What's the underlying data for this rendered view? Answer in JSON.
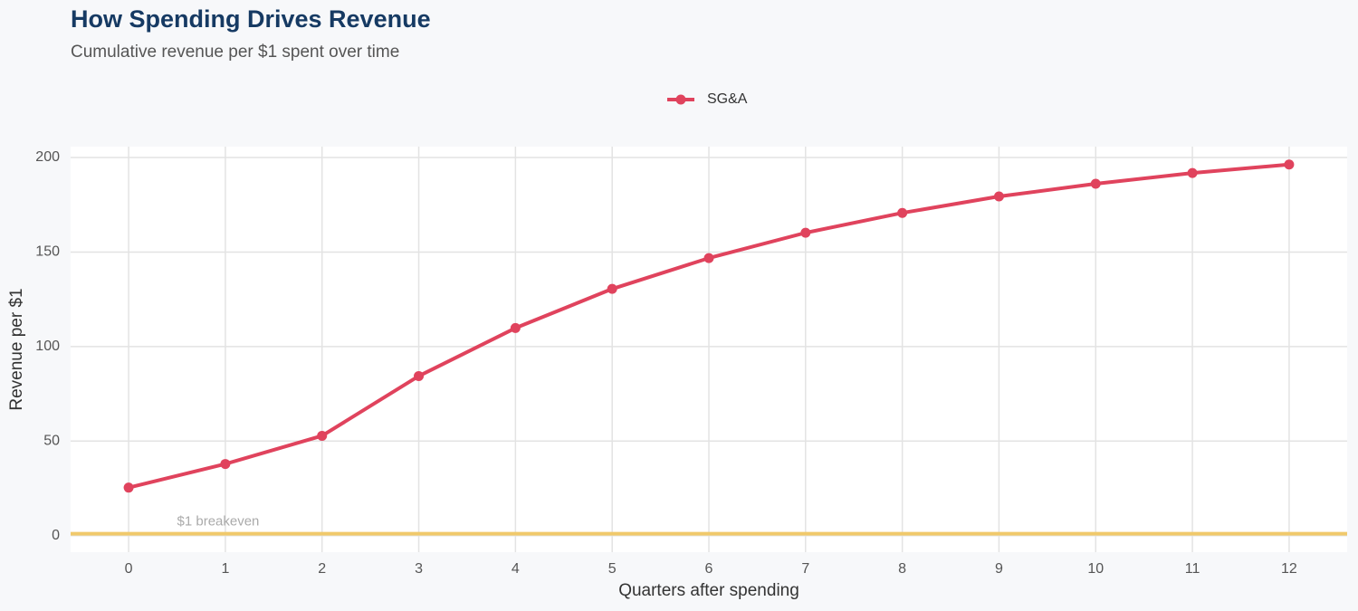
{
  "chart_data": {
    "type": "line",
    "title": "How Spending Drives Revenue",
    "subtitle": "Cumulative revenue per $1 spent over time",
    "x_label": "Quarters after spending",
    "y_label": "Revenue per $1",
    "x": [
      0,
      1,
      2,
      3,
      4,
      5,
      6,
      7,
      8,
      9,
      10,
      11,
      12
    ],
    "series": [
      {
        "name": "SG&A",
        "color": "#e0435d",
        "values": [
          25.4,
          37.9,
          52.8,
          84.4,
          109.8,
          130.5,
          146.8,
          160.2,
          170.7,
          179.4,
          186.1,
          191.8,
          196.3
        ]
      }
    ],
    "reference_line": {
      "value": 1,
      "label": "$1 breakeven",
      "color": "#f0c96b"
    },
    "xlim": [
      -0.6,
      12.6
    ],
    "ylim": [
      -8.75,
      205.75
    ],
    "xticks": [
      0,
      1,
      2,
      3,
      4,
      5,
      6,
      7,
      8,
      9,
      10,
      11,
      12
    ],
    "yticks": [
      0,
      50,
      100,
      150,
      200
    ],
    "grid": true,
    "legend": "top"
  }
}
